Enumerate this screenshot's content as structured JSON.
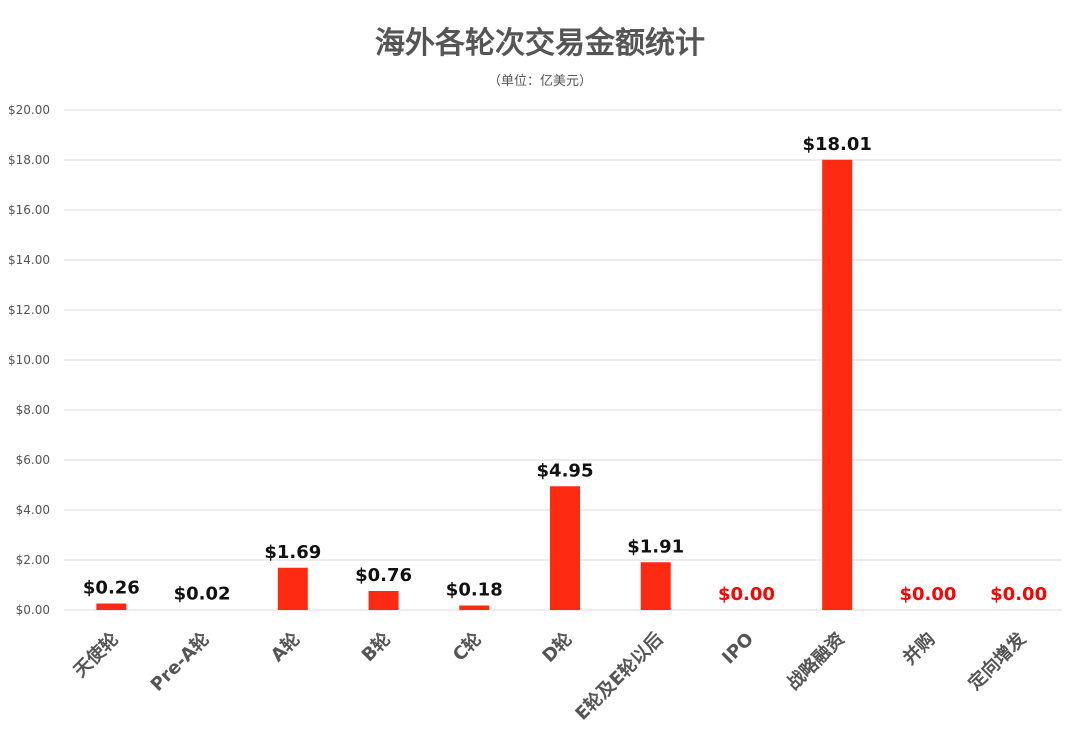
{
  "chart_data": {
    "type": "bar",
    "title": "海外各轮次交易金额统计",
    "subtitle": "（单位：亿美元）",
    "categories": [
      "天使轮",
      "Pre-A轮",
      "A轮",
      "B轮",
      "C轮",
      "D轮",
      "E轮及E轮以后",
      "IPO",
      "战略融资",
      "并购",
      "定向增发"
    ],
    "values": [
      0.26,
      0.02,
      1.69,
      0.76,
      0.18,
      4.95,
      1.91,
      0.0,
      18.01,
      0.0,
      0.0
    ],
    "data_labels": [
      "$0.26",
      "$0.02",
      "$1.69",
      "$0.76",
      "$0.18",
      "$4.95",
      "$1.91",
      "$0.00",
      "$18.01",
      "$0.00",
      "$0.00"
    ],
    "y_ticks": [
      "$0.00",
      "$2.00",
      "$4.00",
      "$6.00",
      "$8.00",
      "$10.00",
      "$12.00",
      "$14.00",
      "$16.00",
      "$18.00",
      "$20.00"
    ],
    "ylim": [
      0,
      20
    ],
    "grid": true,
    "colors": {
      "bar": "#ff2a12",
      "zero_label": "#ff0000",
      "label": "#111111",
      "axis_text": "#555555",
      "grid": "#d9d9d9"
    }
  }
}
